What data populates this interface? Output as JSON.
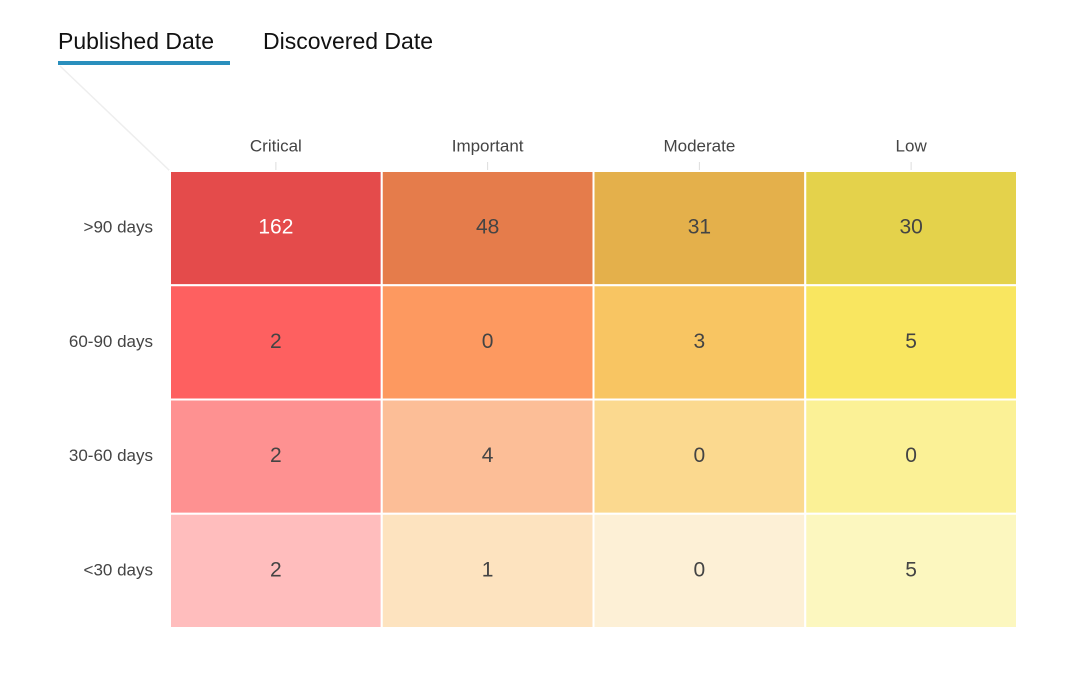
{
  "tabs": [
    "Published Date",
    "Discovered Date"
  ],
  "chart_data": {
    "type": "heatmap",
    "columns": [
      "Critical",
      "Important",
      "Moderate",
      "Low"
    ],
    "rows": [
      ">90 days",
      "60-90 days",
      "30-60 days",
      "<30 days"
    ],
    "values": [
      [
        162,
        48,
        31,
        30
      ],
      [
        2,
        0,
        3,
        5
      ],
      [
        2,
        4,
        0,
        0
      ],
      [
        2,
        1,
        0,
        5
      ]
    ],
    "colors": [
      [
        "#e44b4b",
        "#e57c4b",
        "#e4b04b",
        "#e4d24b"
      ],
      [
        "#fe6060",
        "#fd9960",
        "#f8c562",
        "#f9e660"
      ],
      [
        "#fe9191",
        "#fcbe97",
        "#fbd98f",
        "#fbf196"
      ],
      [
        "#ffbdbd",
        "#fde3bf",
        "#fdf0d6",
        "#fcf7bf"
      ]
    ]
  }
}
